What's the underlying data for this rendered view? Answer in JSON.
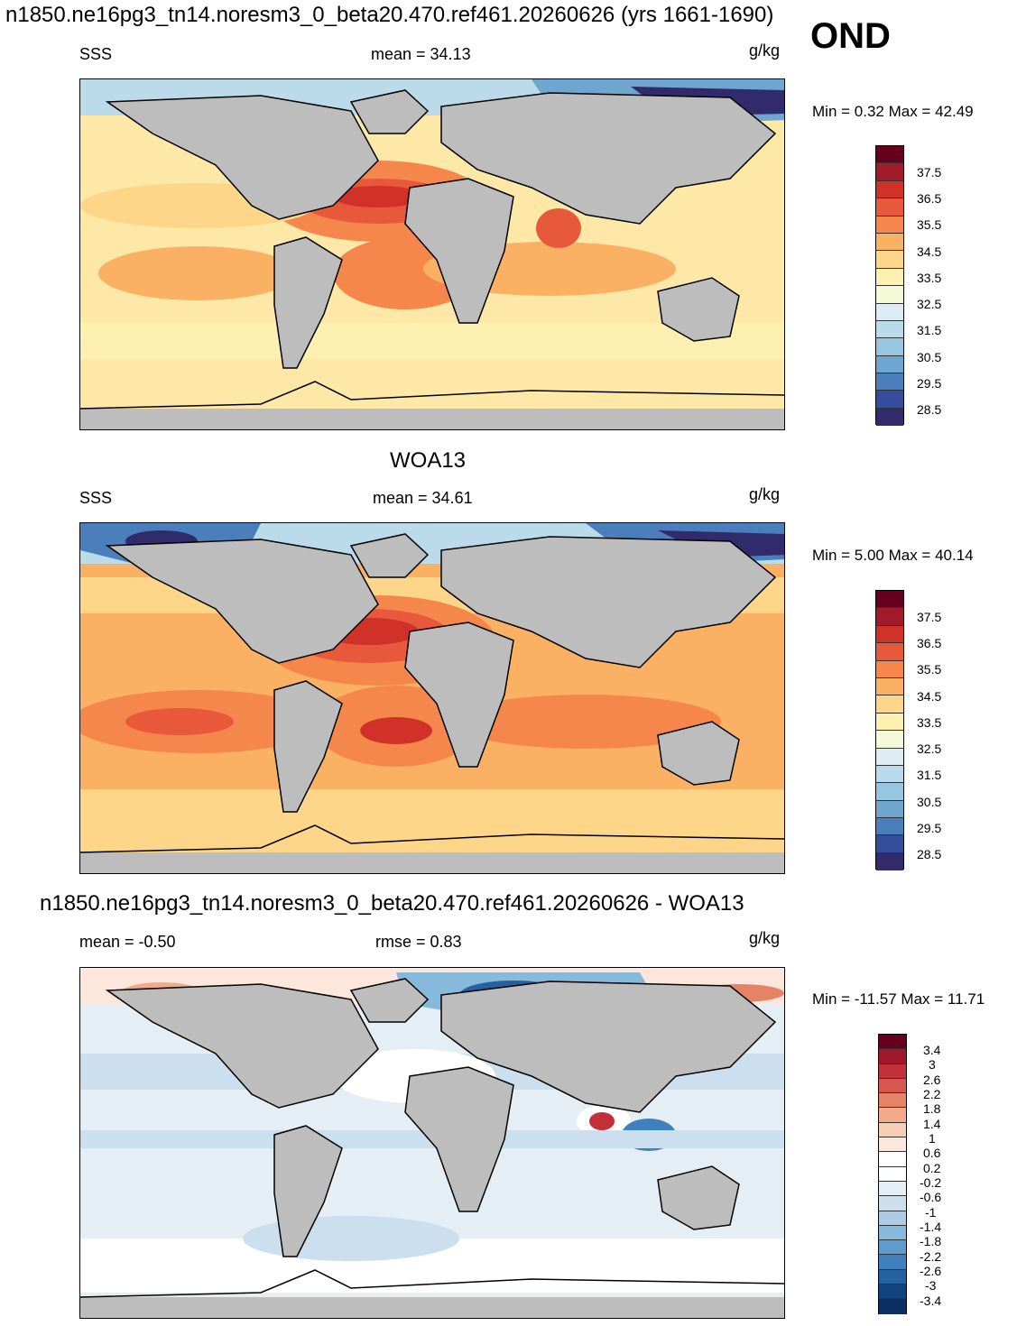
{
  "header": {
    "title": "n1850.ne16pg3_tn14.noresm3_0_beta20.470.ref461.20260626 (yrs 1661-1690)",
    "season": "OND"
  },
  "panels": [
    {
      "title": "",
      "left_label": "SSS",
      "center_label": "mean =  34.13",
      "right_label": "g/kg",
      "minmax": "Min =   0.32 Max =  42.49",
      "colorbar_labels": [
        "37.5",
        "36.5",
        "35.5",
        "34.5",
        "33.5",
        "32.5",
        "31.5",
        "30.5",
        "29.5",
        "28.5"
      ]
    },
    {
      "title": "WOA13",
      "left_label": "SSS",
      "center_label": "mean =  34.61",
      "right_label": "g/kg",
      "minmax": "Min =   5.00 Max =  40.14",
      "colorbar_labels": [
        "37.5",
        "36.5",
        "35.5",
        "34.5",
        "33.5",
        "32.5",
        "31.5",
        "30.5",
        "29.5",
        "28.5"
      ]
    },
    {
      "title": "n1850.ne16pg3_tn14.noresm3_0_beta20.470.ref461.20260626 - WOA13",
      "left_label": "mean =  -0.50",
      "center_label": "rmse =   0.83",
      "right_label": "g/kg",
      "minmax": "Min = -11.57 Max =  11.71",
      "colorbar_labels": [
        "3.4",
        "3",
        "2.6",
        "2.2",
        "1.8",
        "1.4",
        "1",
        "0.6",
        "0.2",
        "-0.2",
        "-0.6",
        "-1",
        "-1.4",
        "-1.8",
        "-2.2",
        "-2.6",
        "-3",
        "-3.4"
      ]
    }
  ],
  "colors": {
    "salinity_scale": [
      "#67001f",
      "#a11a2a",
      "#d03128",
      "#e8583a",
      "#f5874c",
      "#fbb163",
      "#fdd68a",
      "#fef0b0",
      "#f4f9d8",
      "#dcecf2",
      "#bcdbea",
      "#98c6e0",
      "#6ea6cf",
      "#4a7fbb",
      "#344e9d",
      "#312a6b"
    ],
    "diff_scale": [
      "#67001f",
      "#a0172b",
      "#c2303a",
      "#d6574f",
      "#e58367",
      "#f2aa8a",
      "#f8cdb6",
      "#fde7dc",
      "#ffffff",
      "#ffffff",
      "#e5eef5",
      "#cbdfee",
      "#aacde5",
      "#87b9dc",
      "#5e9ccd",
      "#3f80bd",
      "#25619f",
      "#11437c",
      "#0a2f60"
    ],
    "land": "#bdbdbd"
  }
}
